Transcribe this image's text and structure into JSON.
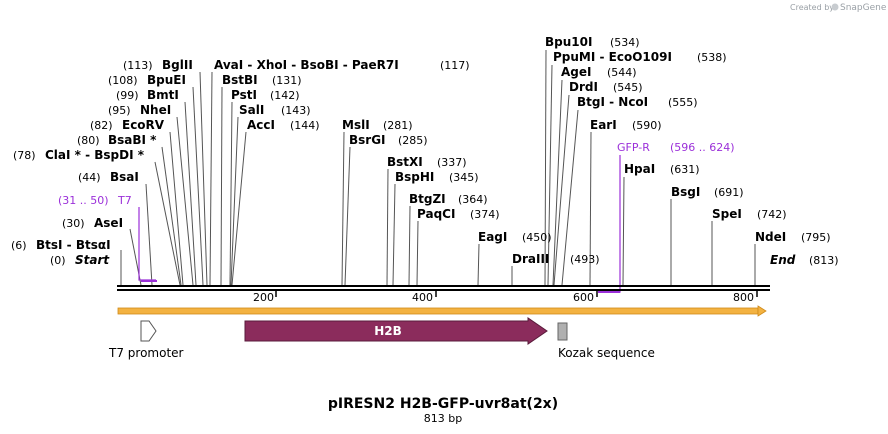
{
  "header": {
    "created_by": "Created by",
    "brand": "SnapGene"
  },
  "map": {
    "title": "pIRESN2 H2B-GFP-uvr8at(2x)",
    "length_label": "813 bp",
    "start_label": "Start",
    "start_pos": "(0)",
    "end_label": "End",
    "end_pos": "(813)"
  },
  "ruler": [
    "200",
    "400",
    "600",
    "800"
  ],
  "sites": [
    {
      "name": "BtsI - BtsαI",
      "pos": "(6)"
    },
    {
      "name": "AseI",
      "pos": "(30)"
    },
    {
      "name": "BsaI",
      "pos": "(44)"
    },
    {
      "name": "ClaI * - BspDI *",
      "pos": "(78)"
    },
    {
      "name": "BsaBI *",
      "pos": "(80)"
    },
    {
      "name": "EcoRV",
      "pos": "(82)"
    },
    {
      "name": "NheI",
      "pos": "(95)"
    },
    {
      "name": "BmtI",
      "pos": "(99)"
    },
    {
      "name": "BpuEI",
      "pos": "(108)"
    },
    {
      "name": "BglII",
      "pos": "(113)"
    },
    {
      "name": "AvaI - XhoI - BsoBI - PaeR7I",
      "pos": "(117)"
    },
    {
      "name": "BstBI",
      "pos": "(131)"
    },
    {
      "name": "PstI",
      "pos": "(142)"
    },
    {
      "name": "SalI",
      "pos": "(143)"
    },
    {
      "name": "AccI",
      "pos": "(144)"
    },
    {
      "name": "MslI",
      "pos": "(281)"
    },
    {
      "name": "BsrGI",
      "pos": "(285)"
    },
    {
      "name": "BstXI",
      "pos": "(337)"
    },
    {
      "name": "BspHI",
      "pos": "(345)"
    },
    {
      "name": "BtgZI",
      "pos": "(364)"
    },
    {
      "name": "PaqCI",
      "pos": "(374)"
    },
    {
      "name": "EagI",
      "pos": "(450)"
    },
    {
      "name": "DraIII",
      "pos": "(493)"
    },
    {
      "name": "Bpu10I",
      "pos": "(534)"
    },
    {
      "name": "PpuMI - EcoO109I",
      "pos": "(538)"
    },
    {
      "name": "AgeI",
      "pos": "(544)"
    },
    {
      "name": "DrdI",
      "pos": "(545)"
    },
    {
      "name": "BtgI - NcoI",
      "pos": "(555)"
    },
    {
      "name": "EarI",
      "pos": "(590)"
    },
    {
      "name": "HpaI",
      "pos": "(631)"
    },
    {
      "name": "BsgI",
      "pos": "(691)"
    },
    {
      "name": "SpeI",
      "pos": "(742)"
    },
    {
      "name": "NdeI",
      "pos": "(795)"
    }
  ],
  "primers": [
    {
      "name": "T7",
      "pos": "(31 .. 50)"
    },
    {
      "name": "GFP-R",
      "pos": "(596 .. 624)"
    }
  ],
  "features": [
    {
      "name": "T7 promoter",
      "color": "#ffffff"
    },
    {
      "name": "H2B",
      "color": "#8b2c5c"
    },
    {
      "name": "Kozak sequence",
      "color": "#b0b0b0"
    }
  ],
  "colors": {
    "backbone": "#f3b241",
    "primer": "#9b30d9",
    "h2b": "#8b2c5c"
  }
}
